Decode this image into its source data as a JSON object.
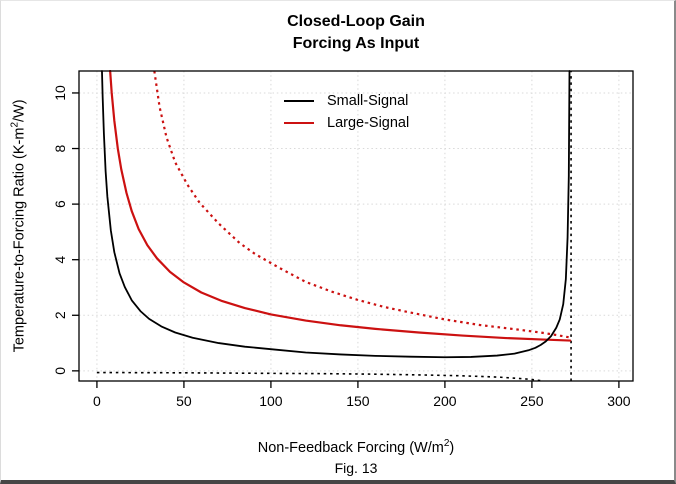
{
  "figure": {
    "title_line1": "Closed-Loop Gain",
    "title_line2": "Forcing As Input",
    "caption": "Fig. 13"
  },
  "axes": {
    "x": {
      "label_pre": "Non-Feedback Forcing (W/m",
      "label_sup": "2",
      "label_post": ")",
      "ticks": [
        0,
        50,
        100,
        150,
        200,
        250,
        300
      ],
      "min": -10.3,
      "max": 308.1
    },
    "y": {
      "label_pre": "Temperature-to-Forcing Ratio (K-m",
      "label_sup": "2",
      "label_post": "/W)",
      "ticks": [
        0,
        2,
        4,
        6,
        8,
        10
      ],
      "min": -0.365,
      "max": 10.79
    }
  },
  "legend": [
    {
      "label": "Small-Signal",
      "color": "#000000"
    },
    {
      "label": "Large-Signal",
      "color": "#cc1111"
    }
  ],
  "colors": {
    "small_signal": "#000000",
    "large_signal": "#cc1111",
    "grid": "#d9d9d9",
    "axis": "#000000"
  },
  "chart_data": {
    "type": "line",
    "title": "Closed-Loop Gain — Forcing As Input",
    "xlabel": "Non-Feedback Forcing (W/m2)",
    "ylabel": "Temperature-to-Forcing Ratio (K-m2/W)",
    "xlim": [
      -10.3,
      308.1
    ],
    "ylim": [
      -0.365,
      10.79
    ],
    "x_gridlines": [
      0,
      50,
      100,
      150,
      200,
      250,
      300
    ],
    "y_gridlines": [
      0,
      2,
      4,
      6,
      8,
      10
    ],
    "grid": "dotted",
    "legend_position": "top-center-inside",
    "vertical_asymptote_x": 272.5,
    "series": [
      {
        "name": "large-signal-dotted",
        "legend": null,
        "color": "#cc1111",
        "style": "dotted",
        "width": 2.2,
        "points": [
          [
            33,
            10.79
          ],
          [
            36,
            9.5
          ],
          [
            40,
            8.4
          ],
          [
            45,
            7.5
          ],
          [
            52,
            6.7
          ],
          [
            59,
            6.05
          ],
          [
            70,
            5.3
          ],
          [
            82,
            4.6
          ],
          [
            91,
            4.2
          ],
          [
            105,
            3.7
          ],
          [
            120,
            3.2
          ],
          [
            135,
            2.85
          ],
          [
            150,
            2.55
          ],
          [
            165,
            2.3
          ],
          [
            180,
            2.1
          ],
          [
            200,
            1.85
          ],
          [
            220,
            1.65
          ],
          [
            240,
            1.5
          ],
          [
            255,
            1.38
          ],
          [
            265,
            1.28
          ],
          [
            272,
            1.2
          ]
        ]
      },
      {
        "name": "small-signal-dotted",
        "legend": null,
        "color": "#000000",
        "style": "dotted",
        "width": 1.6,
        "points": [
          [
            0,
            -0.06
          ],
          [
            50,
            -0.07
          ],
          [
            100,
            -0.09
          ],
          [
            130,
            -0.1
          ],
          [
            160,
            -0.12
          ],
          [
            185,
            -0.145
          ],
          [
            205,
            -0.17
          ],
          [
            220,
            -0.2
          ],
          [
            232,
            -0.23
          ],
          [
            242,
            -0.27
          ],
          [
            250,
            -0.31
          ],
          [
            256,
            -0.36
          ]
        ]
      },
      {
        "name": "asymptote-vline",
        "legend": null,
        "color": "#000000",
        "style": "dotted",
        "width": 1.6,
        "points": [
          [
            272.5,
            -0.365
          ],
          [
            272.5,
            10.79
          ]
        ]
      },
      {
        "name": "large-signal-closed-loop",
        "legend": "Large-Signal",
        "color": "#cc1111",
        "style": "solid",
        "width": 2.2,
        "points": [
          [
            7.6,
            10.79
          ],
          [
            8.5,
            10.0
          ],
          [
            10,
            9.0
          ],
          [
            12,
            8.0
          ],
          [
            14,
            7.25
          ],
          [
            17,
            6.4
          ],
          [
            20,
            5.75
          ],
          [
            24,
            5.1
          ],
          [
            29,
            4.52
          ],
          [
            34.5,
            4.05
          ],
          [
            42,
            3.56
          ],
          [
            50,
            3.18
          ],
          [
            60,
            2.82
          ],
          [
            72,
            2.51
          ],
          [
            85,
            2.26
          ],
          [
            100,
            2.03
          ],
          [
            120,
            1.81
          ],
          [
            140,
            1.64
          ],
          [
            160,
            1.51
          ],
          [
            185,
            1.38
          ],
          [
            210,
            1.27
          ],
          [
            235,
            1.18
          ],
          [
            255,
            1.13
          ],
          [
            272,
            1.09
          ]
        ]
      },
      {
        "name": "small-signal-closed-loop",
        "legend": "Small-Signal",
        "color": "#000000",
        "style": "solid",
        "width": 1.8,
        "points": [
          [
            2.9,
            10.79
          ],
          [
            3.3,
            9.85
          ],
          [
            4,
            8.55
          ],
          [
            5,
            7.18
          ],
          [
            6,
            6.27
          ],
          [
            8,
            5.05
          ],
          [
            10,
            4.27
          ],
          [
            13,
            3.51
          ],
          [
            16,
            3.02
          ],
          [
            20,
            2.54
          ],
          [
            25,
            2.15
          ],
          [
            30,
            1.87
          ],
          [
            37,
            1.6
          ],
          [
            45,
            1.38
          ],
          [
            55,
            1.19
          ],
          [
            70,
            1.0
          ],
          [
            85,
            0.87
          ],
          [
            100,
            0.78
          ],
          [
            120,
            0.66
          ],
          [
            140,
            0.59
          ],
          [
            160,
            0.54
          ],
          [
            180,
            0.51
          ],
          [
            200,
            0.49
          ],
          [
            215,
            0.5
          ],
          [
            230,
            0.55
          ],
          [
            240,
            0.62
          ],
          [
            248,
            0.74
          ],
          [
            252,
            0.83
          ],
          [
            255,
            0.93
          ],
          [
            258,
            1.06
          ],
          [
            261,
            1.25
          ],
          [
            264,
            1.55
          ],
          [
            266,
            1.85
          ],
          [
            268,
            2.4
          ],
          [
            269.5,
            3.3
          ],
          [
            270.5,
            4.8
          ],
          [
            271.2,
            7.0
          ],
          [
            271.6,
            10.79
          ]
        ]
      }
    ]
  }
}
